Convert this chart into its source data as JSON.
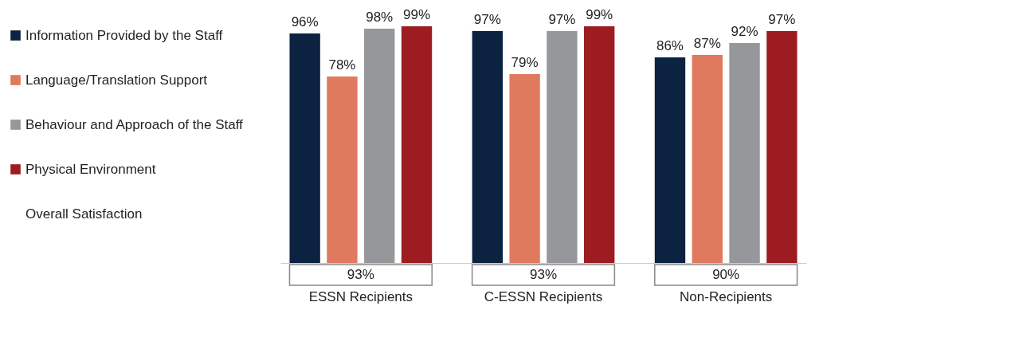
{
  "chart_data": {
    "type": "bar",
    "legend": "left",
    "categories": [
      "ESSN Recipients",
      "C-ESSN Recipients",
      "Non-Recipients"
    ],
    "series": [
      {
        "name": "Information Provided by the Staff",
        "color": "#0b2340",
        "values": [
          96,
          97,
          86
        ],
        "value_labels": [
          "96%",
          "97%",
          "86%"
        ]
      },
      {
        "name": "Language/Translation Support",
        "color": "#e07a5f",
        "values": [
          78,
          79,
          87
        ],
        "value_labels": [
          "78%",
          "79%",
          "87%"
        ]
      },
      {
        "name": "Behaviour and Approach of the Staff",
        "color": "#96979b",
        "values": [
          98,
          97,
          92
        ],
        "value_labels": [
          "98%",
          "97%",
          "92%"
        ]
      },
      {
        "name": "Physical Environment",
        "color": "#9c1c22",
        "values": [
          99,
          99,
          97
        ],
        "value_labels": [
          "99%",
          "99%",
          "97%"
        ]
      }
    ],
    "annotations": [
      "Overall Satisfaction",
      "93%",
      "93%",
      "90%"
    ]
  }
}
